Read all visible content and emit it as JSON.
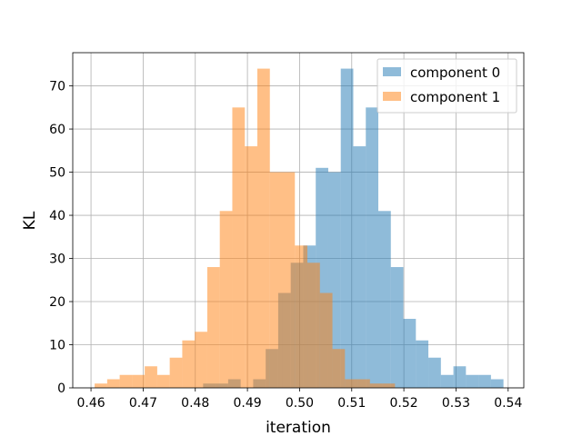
{
  "chart_data": {
    "type": "bar",
    "subtype": "histogram",
    "title": "",
    "xlabel": "iteration",
    "ylabel": "KL",
    "xlim": [
      0.4565,
      0.543
    ],
    "ylim": [
      0,
      77.7
    ],
    "xticks": [
      0.46,
      0.47,
      0.48,
      0.49,
      0.5,
      0.51,
      0.52,
      0.53,
      0.54
    ],
    "xtick_labels": [
      "0.46",
      "0.47",
      "0.48",
      "0.49",
      "0.50",
      "0.51",
      "0.52",
      "0.53",
      "0.54"
    ],
    "yticks": [
      0,
      10,
      20,
      30,
      40,
      50,
      60,
      70
    ],
    "ytick_labels": [
      "0",
      "10",
      "20",
      "30",
      "40",
      "50",
      "60",
      "70"
    ],
    "grid": true,
    "legend_position": "top-right",
    "series": [
      {
        "name": "component 0",
        "color": "#1f77b4",
        "alpha": 0.5,
        "bin_edges": [
          0.4815,
          0.4839,
          0.4863,
          0.4887,
          0.4911,
          0.4935,
          0.4959,
          0.4983,
          0.5007,
          0.5031,
          0.5055,
          0.5079,
          0.5103,
          0.5127,
          0.5151,
          0.5175,
          0.5199,
          0.5223,
          0.5247,
          0.5271,
          0.5295,
          0.5319,
          0.5343,
          0.5367,
          0.5391
        ],
        "counts": [
          1,
          1,
          2,
          0,
          2,
          9,
          22,
          29,
          33,
          51,
          50,
          74,
          56,
          65,
          41,
          28,
          16,
          11,
          7,
          3,
          5,
          3,
          3,
          2
        ]
      },
      {
        "name": "component 1",
        "color": "#ff7f0e",
        "alpha": 0.5,
        "bin_edges": [
          0.4607,
          0.4631,
          0.4655,
          0.4679,
          0.4703,
          0.4727,
          0.4751,
          0.4775,
          0.4799,
          0.4823,
          0.4847,
          0.4871,
          0.4895,
          0.4919,
          0.4943,
          0.4967,
          0.4991,
          0.5015,
          0.5039,
          0.5063,
          0.5087,
          0.5111,
          0.5135,
          0.5159,
          0.5183
        ],
        "counts": [
          1,
          2,
          3,
          3,
          5,
          3,
          7,
          11,
          13,
          28,
          41,
          65,
          56,
          74,
          50,
          50,
          33,
          29,
          22,
          9,
          2,
          2,
          1,
          1
        ]
      }
    ]
  }
}
